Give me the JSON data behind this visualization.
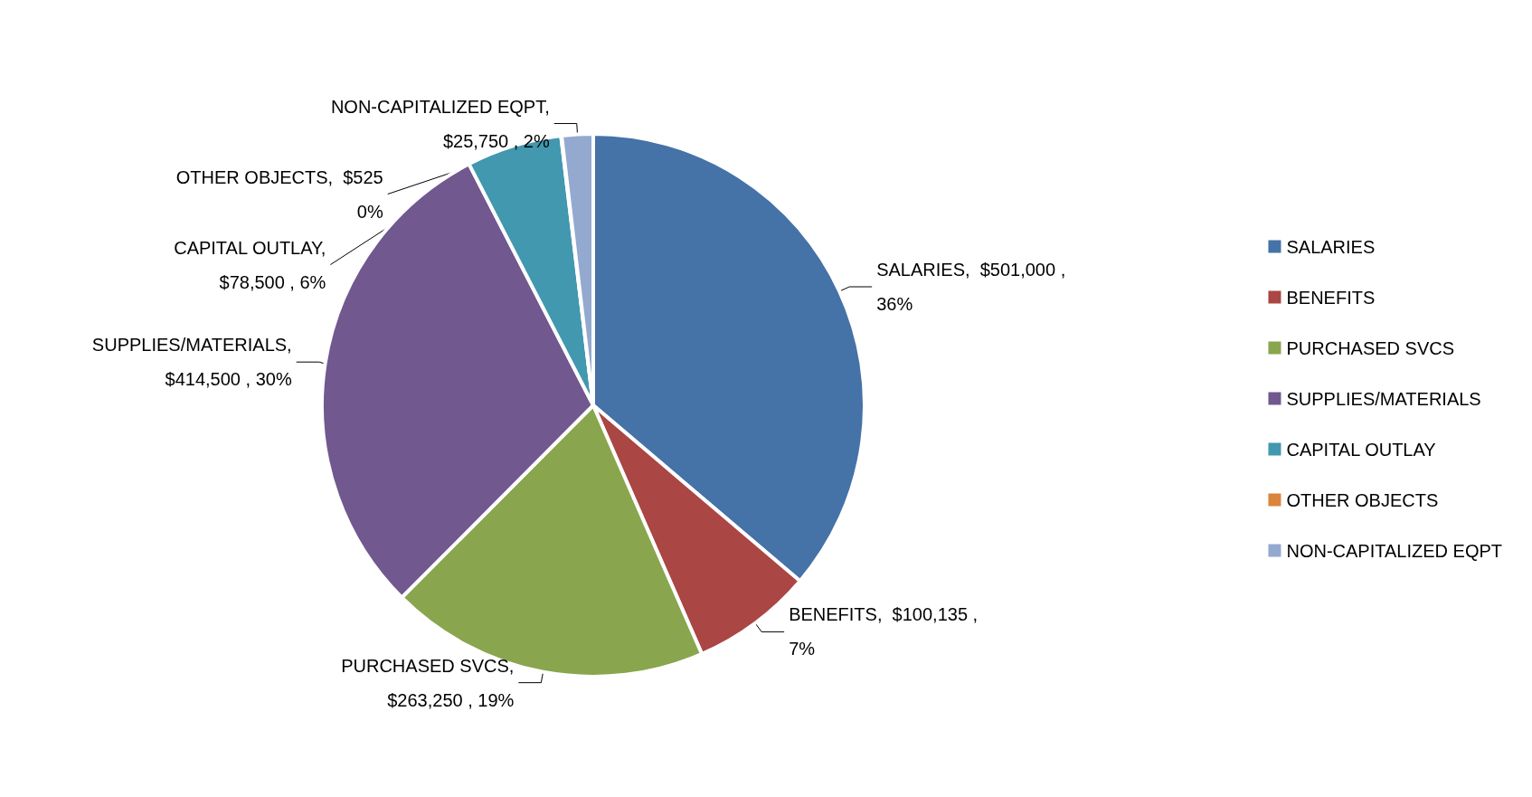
{
  "chart_data": {
    "type": "pie",
    "categories": [
      "SALARIES",
      "BENEFITS",
      "PURCHASED SVCS",
      "SUPPLIES/MATERIALS",
      "CAPITAL OUTLAY",
      "OTHER OBJECTS",
      "NON-CAPITALIZED EQPT"
    ],
    "values": [
      501000,
      100135,
      263250,
      414500,
      78500,
      525,
      25750
    ],
    "colors": [
      "#4572a7",
      "#aa4643",
      "#89a54e",
      "#71588f",
      "#4198af",
      "#db843d",
      "#93a9cf"
    ],
    "value_labels": [
      "SALARIES,  $501,000 ,\n36%",
      "BENEFITS,  $100,135 ,\n7%",
      "PURCHASED SVCS,\n$263,250 , 19%",
      "SUPPLIES/MATERIALS,\n$414,500 , 30%",
      "CAPITAL OUTLAY,\n$78,500 , 6%",
      "OTHER OBJECTS,  $525\n0%",
      "NON-CAPITALIZED EQPT,\n$25,750 , 2%"
    ],
    "legend": "right"
  }
}
